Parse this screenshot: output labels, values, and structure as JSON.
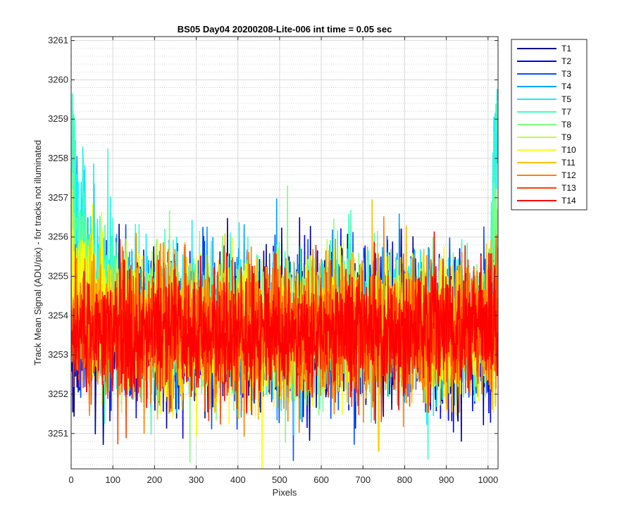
{
  "chart_data": {
    "type": "line",
    "title": "BS05 Day04 20200208-Lite-006 int time = 0.05 sec",
    "xlabel": "Pixels",
    "ylabel": "Track Mean Signal (ADU/pix) - for tracks not illuminated",
    "xlim": [
      0,
      1024
    ],
    "ylim": [
      3250.1,
      3261.1
    ],
    "xticks": [
      0,
      100,
      200,
      300,
      400,
      500,
      600,
      700,
      800,
      900,
      1000
    ],
    "yticks": [
      3251,
      3252,
      3253,
      3254,
      3255,
      3256,
      3257,
      3258,
      3259,
      3260,
      3261
    ],
    "grid": "on (major solid, minor dotted)",
    "legend_position": "outside-right-top",
    "n_points_per_series": 1024,
    "series": [
      {
        "name": "T1",
        "color": "#00008f",
        "mean": 3253.6,
        "noise_range": [
          3250.1,
          3256.1
        ],
        "edge_high_end": 3255.2,
        "edge_high_start": 3254.0
      },
      {
        "name": "T2",
        "color": "#0000ef",
        "mean": 3253.6,
        "noise_range": [
          3250.5,
          3256.0
        ],
        "edge_high_end": 3255.5,
        "edge_high_start": 3254.5
      },
      {
        "name": "T3",
        "color": "#0050ff",
        "mean": 3253.7,
        "noise_range": [
          3250.8,
          3256.1
        ],
        "edge_high_end": 3256.0,
        "edge_high_start": 3255.5
      },
      {
        "name": "T4",
        "color": "#00a0ff",
        "mean": 3253.8,
        "noise_range": [
          3251.0,
          3256.2
        ],
        "edge_high_end": 3256.7,
        "edge_high_start": 3258.5
      },
      {
        "name": "T5",
        "color": "#10f0ff",
        "mean": 3253.8,
        "noise_range": [
          3251.0,
          3256.3
        ],
        "edge_high_end": 3260.9,
        "edge_high_start": 3259.4
      },
      {
        "name": "T7",
        "color": "#40ffbf",
        "mean": 3253.8,
        "noise_range": [
          3250.2,
          3256.0
        ],
        "edge_high_end": 3261.0,
        "edge_high_start": 3259.4
      },
      {
        "name": "T8",
        "color": "#80ff80",
        "mean": 3253.7,
        "noise_range": [
          3250.3,
          3255.8
        ],
        "edge_high_end": 3258.0,
        "edge_high_start": 3257.0
      },
      {
        "name": "T9",
        "color": "#bfff40",
        "mean": 3253.7,
        "noise_range": [
          3251.0,
          3255.7
        ],
        "edge_high_end": 3255.0,
        "edge_high_start": 3256.5
      },
      {
        "name": "T10",
        "color": "#ffff00",
        "mean": 3253.6,
        "noise_range": [
          3250.3,
          3255.7
        ],
        "edge_high_end": 3254.5,
        "edge_high_start": 3256.0
      },
      {
        "name": "T11",
        "color": "#ffbf00",
        "mean": 3253.6,
        "noise_range": [
          3250.4,
          3256.0
        ],
        "edge_high_end": 3254.5,
        "edge_high_start": 3255.5
      },
      {
        "name": "T12",
        "color": "#ff8000",
        "mean": 3253.6,
        "noise_range": [
          3250.4,
          3255.8
        ],
        "edge_high_end": 3254.0,
        "edge_high_start": 3255.0
      },
      {
        "name": "T13",
        "color": "#ff4000",
        "mean": 3253.6,
        "noise_range": [
          3251.0,
          3256.0
        ],
        "edge_high_end": 3254.0,
        "edge_high_start": 3254.5
      },
      {
        "name": "T14",
        "color": "#ff0000",
        "mean": 3253.6,
        "noise_range": [
          3251.3,
          3256.0
        ],
        "edge_high_end": 3253.8,
        "edge_high_start": 3254.2
      }
    ]
  }
}
